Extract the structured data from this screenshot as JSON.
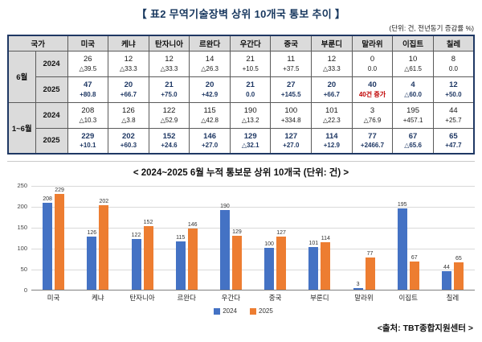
{
  "title": "【 표2 무역기술장벽 상위 10개국 통보 추이 】",
  "unit_note": "(단위: 건, 전년동기 증감률 %)",
  "table": {
    "corner_header": "국가",
    "countries": [
      "미국",
      "케냐",
      "탄자니아",
      "르완다",
      "우간다",
      "중국",
      "부룬디",
      "말라위",
      "이집트",
      "칠레"
    ],
    "row_groups": [
      {
        "period": "6월",
        "rows": [
          {
            "year": "2024",
            "counts": [
              "26",
              "12",
              "12",
              "14",
              "21",
              "11",
              "12",
              "0",
              "10",
              "8"
            ],
            "changes": [
              "△39.5",
              "△33.3",
              "△33.3",
              "△26.3",
              "+10.5",
              "+37.5",
              "△33.3",
              "0.0",
              "△61.5",
              "0.0"
            ]
          },
          {
            "year": "2025",
            "counts": [
              "47",
              "20",
              "21",
              "20",
              "21",
              "27",
              "20",
              "40",
              "4",
              "12"
            ],
            "changes": [
              "+80.8",
              "+66.7",
              "+75.0",
              "+42.9",
              "0.0",
              "+145.5",
              "+66.7",
              "40건 증가",
              "△60.0",
              "+50.0"
            ]
          }
        ]
      },
      {
        "period": "1~6월",
        "rows": [
          {
            "year": "2024",
            "counts": [
              "208",
              "126",
              "122",
              "115",
              "190",
              "100",
              "101",
              "3",
              "195",
              "44"
            ],
            "changes": [
              "△10.3",
              "△3.8",
              "△52.9",
              "△42.8",
              "△13.2",
              "+334.8",
              "△22.3",
              "△76.9",
              "+457.1",
              "+25.7"
            ]
          },
          {
            "year": "2025",
            "counts": [
              "229",
              "202",
              "152",
              "146",
              "129",
              "127",
              "114",
              "77",
              "67",
              "65"
            ],
            "changes": [
              "+10.1",
              "+60.3",
              "+24.6",
              "+27.0",
              "△32.1",
              "+27.0",
              "+12.9",
              "+2466.7",
              "△65.6",
              "+47.7"
            ]
          }
        ]
      }
    ]
  },
  "chart_data": {
    "type": "bar",
    "title": "< 2024~2025 6월 누적 통보문 상위 10개국 (단위: 건) >",
    "categories": [
      "미국",
      "케냐",
      "탄자니아",
      "르완다",
      "우간다",
      "중국",
      "부룬디",
      "말라위",
      "이집트",
      "칠레"
    ],
    "series": [
      {
        "name": "2024",
        "color": "#4472C4",
        "values": [
          208,
          126,
          122,
          115,
          190,
          100,
          101,
          3,
          195,
          44
        ]
      },
      {
        "name": "2025",
        "color": "#ED7D31",
        "values": [
          229,
          202,
          152,
          146,
          129,
          127,
          114,
          77,
          67,
          65
        ]
      }
    ],
    "xlabel": "",
    "ylabel": "",
    "ylim": [
      0,
      250
    ],
    "yticks": [
      0,
      50,
      100,
      150,
      200,
      250
    ],
    "grid": true,
    "legend_position": "bottom"
  },
  "footer": "<출처: TBT종합지원센터 >"
}
